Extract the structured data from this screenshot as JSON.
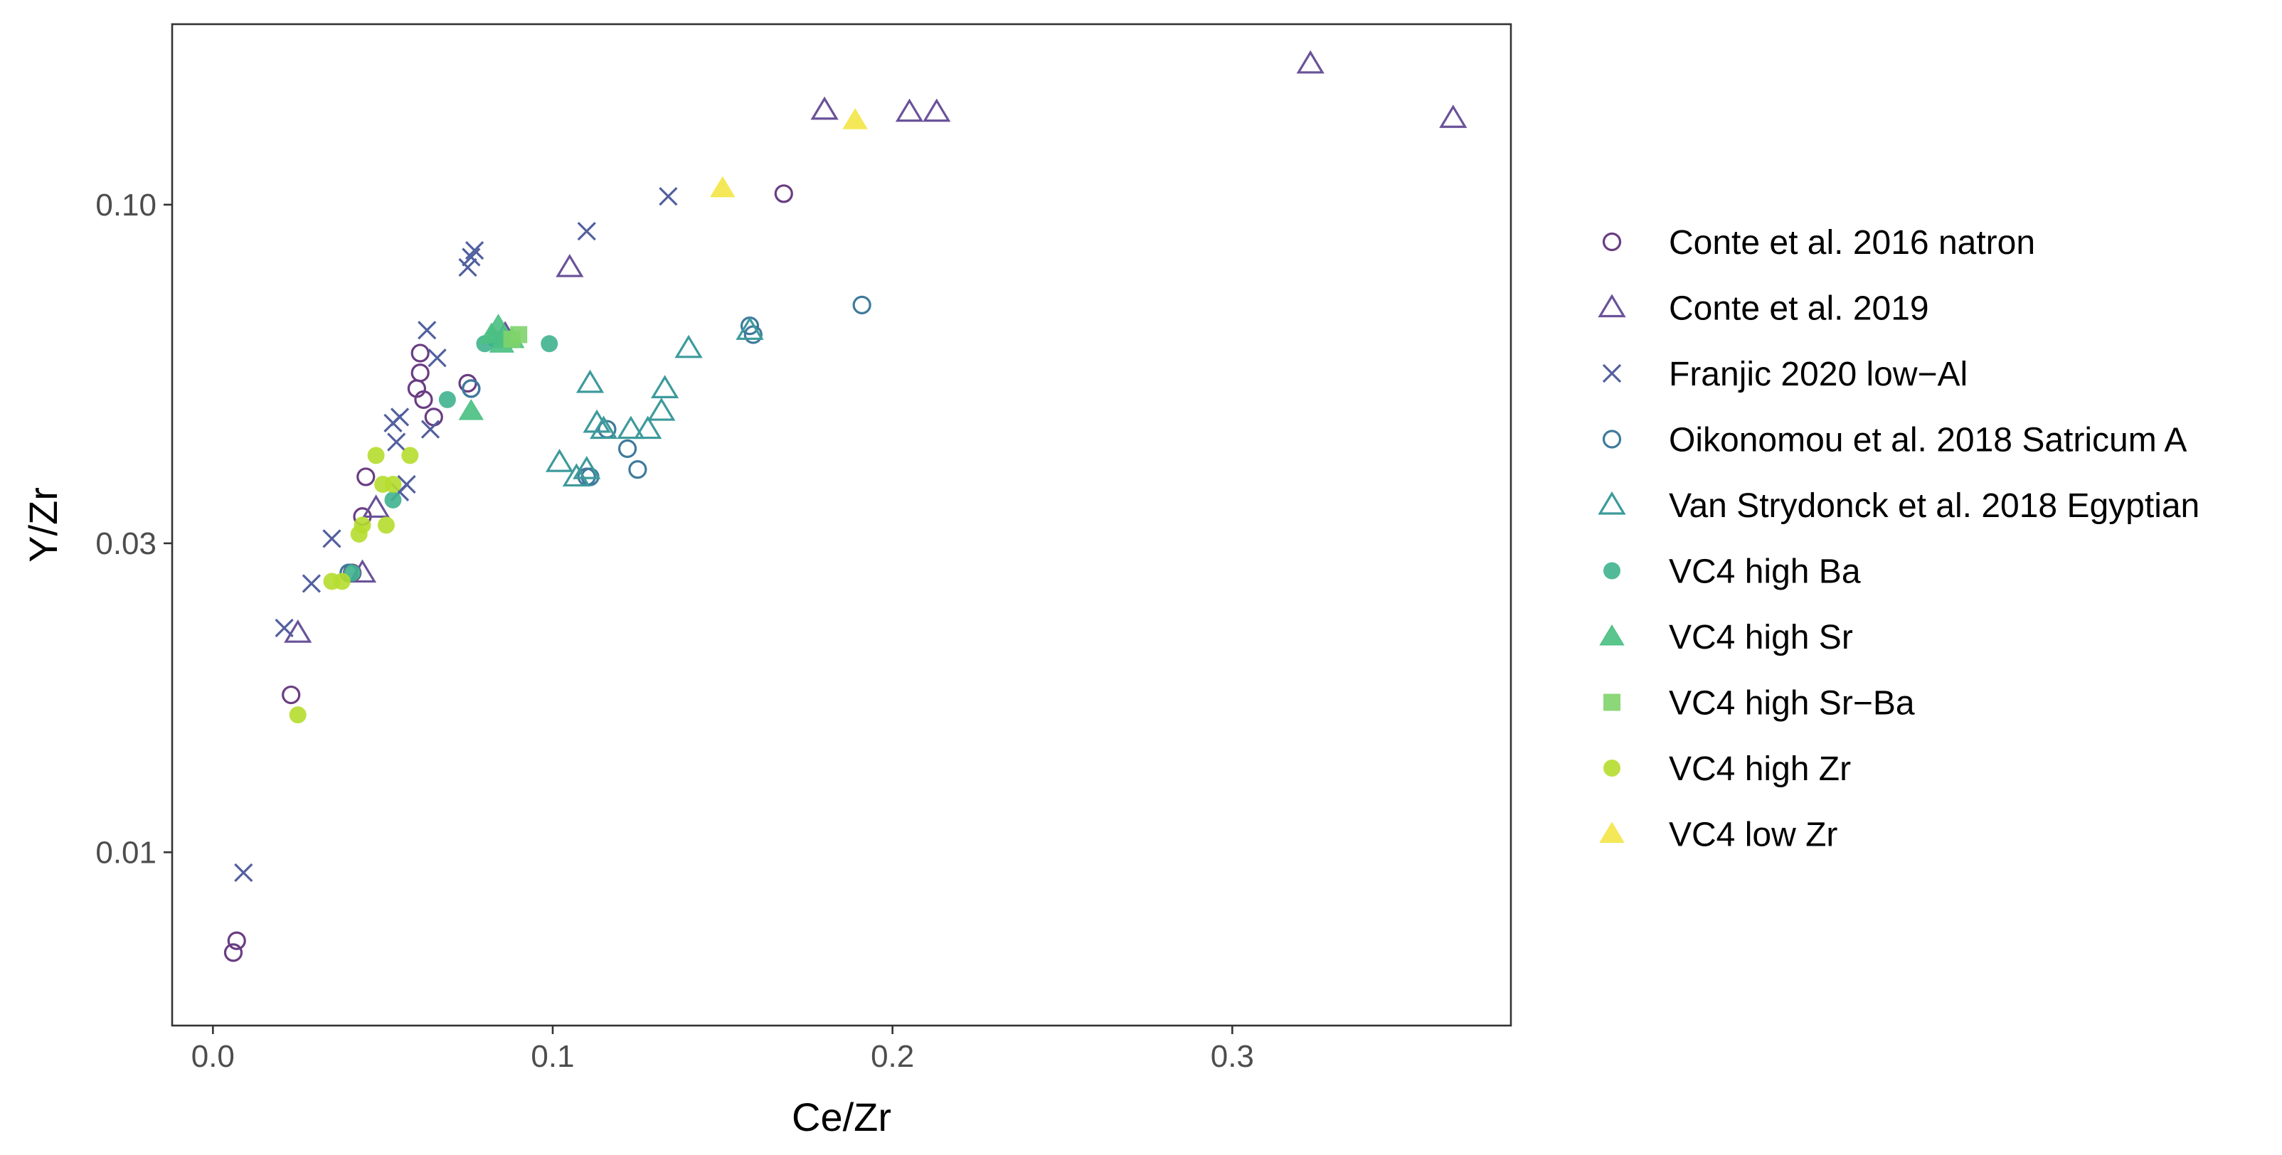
{
  "chart_data": {
    "type": "scatter",
    "title": "",
    "xlabel": "Ce/Zr",
    "ylabel": "Y/Zr",
    "xlim": [
      -0.012,
      0.382
    ],
    "ylim": [
      0.0054,
      0.19
    ],
    "yscale": "log",
    "x_ticks": [
      0.0,
      0.1,
      0.2,
      0.3
    ],
    "x_tick_labels": [
      "0.0",
      "0.1",
      "0.2",
      "0.3"
    ],
    "y_ticks": [
      0.01,
      0.03,
      0.1
    ],
    "y_tick_labels": [
      "0.01",
      "0.03",
      "0.10"
    ],
    "grid": false,
    "legend_position": "right",
    "series": [
      {
        "name": "Conte et al. 2016 natron",
        "marker": "open-circle",
        "color": "#6a3d82",
        "points": [
          [
            0.168,
            0.104
          ],
          [
            0.061,
            0.059
          ],
          [
            0.061,
            0.055
          ],
          [
            0.06,
            0.052
          ],
          [
            0.062,
            0.05
          ],
          [
            0.065,
            0.047
          ],
          [
            0.076,
            0.052
          ],
          [
            0.075,
            0.053
          ],
          [
            0.045,
            0.038
          ],
          [
            0.044,
            0.033
          ],
          [
            0.041,
            0.027
          ],
          [
            0.04,
            0.027
          ],
          [
            0.023,
            0.0175
          ],
          [
            0.007,
            0.0073
          ],
          [
            0.006,
            0.007
          ]
        ]
      },
      {
        "name": "Conte et al. 2019",
        "marker": "open-triangle",
        "color": "#6a5299",
        "points": [
          [
            0.323,
            0.165
          ],
          [
            0.365,
            0.136
          ],
          [
            0.18,
            0.14
          ],
          [
            0.205,
            0.139
          ],
          [
            0.213,
            0.139
          ],
          [
            0.105,
            0.08
          ],
          [
            0.086,
            0.063
          ],
          [
            0.048,
            0.034
          ],
          [
            0.044,
            0.027
          ],
          [
            0.025,
            0.0218
          ]
        ]
      },
      {
        "name": "Franjic 2020 low−Al",
        "marker": "cross",
        "color": "#52609f",
        "points": [
          [
            0.134,
            0.103
          ],
          [
            0.11,
            0.091
          ],
          [
            0.077,
            0.085
          ],
          [
            0.076,
            0.083
          ],
          [
            0.075,
            0.08
          ],
          [
            0.063,
            0.064
          ],
          [
            0.066,
            0.058
          ],
          [
            0.055,
            0.047
          ],
          [
            0.053,
            0.046
          ],
          [
            0.054,
            0.043
          ],
          [
            0.064,
            0.045
          ],
          [
            0.057,
            0.037
          ],
          [
            0.055,
            0.036
          ],
          [
            0.035,
            0.0305
          ],
          [
            0.029,
            0.026
          ],
          [
            0.021,
            0.0222
          ],
          [
            0.009,
            0.0093
          ]
        ]
      },
      {
        "name": "Oikonomou et al. 2018 Satricum A",
        "marker": "open-circle",
        "color": "#3e7a9c",
        "points": [
          [
            0.191,
            0.07
          ],
          [
            0.158,
            0.065
          ],
          [
            0.159,
            0.063
          ],
          [
            0.116,
            0.045
          ],
          [
            0.122,
            0.042
          ],
          [
            0.125,
            0.039
          ],
          [
            0.111,
            0.038
          ],
          [
            0.11,
            0.038
          ],
          [
            0.076,
            0.052
          ],
          [
            0.04,
            0.027
          ]
        ]
      },
      {
        "name": "Van Strydonck et al. 2018 Egyptian",
        "marker": "open-triangle",
        "color": "#3d9a9c",
        "points": [
          [
            0.14,
            0.06
          ],
          [
            0.158,
            0.064
          ],
          [
            0.111,
            0.053
          ],
          [
            0.133,
            0.052
          ],
          [
            0.132,
            0.048
          ],
          [
            0.113,
            0.046
          ],
          [
            0.115,
            0.045
          ],
          [
            0.123,
            0.045
          ],
          [
            0.128,
            0.045
          ],
          [
            0.102,
            0.04
          ],
          [
            0.107,
            0.038
          ],
          [
            0.11,
            0.039
          ]
        ]
      },
      {
        "name": "VC4 high Ba",
        "marker": "filled-circle",
        "color": "#3fb28e",
        "points": [
          [
            0.099,
            0.061
          ],
          [
            0.08,
            0.061
          ],
          [
            0.083,
            0.062
          ],
          [
            0.087,
            0.062
          ],
          [
            0.069,
            0.05
          ],
          [
            0.053,
            0.035
          ],
          [
            0.041,
            0.027
          ]
        ]
      },
      {
        "name": "VC4 high Sr",
        "marker": "filled-triangle",
        "color": "#4cc083",
        "points": [
          [
            0.084,
            0.065
          ],
          [
            0.082,
            0.063
          ],
          [
            0.086,
            0.062
          ],
          [
            0.088,
            0.062
          ],
          [
            0.085,
            0.061
          ],
          [
            0.076,
            0.048
          ]
        ]
      },
      {
        "name": "VC4 high Sr−Ba",
        "marker": "filled-square",
        "color": "#7fd36a",
        "points": [
          [
            0.09,
            0.063
          ],
          [
            0.088,
            0.062
          ]
        ]
      },
      {
        "name": "VC4 high Zr",
        "marker": "filled-circle",
        "color": "#b5dd2e",
        "points": [
          [
            0.048,
            0.041
          ],
          [
            0.058,
            0.041
          ],
          [
            0.05,
            0.037
          ],
          [
            0.053,
            0.037
          ],
          [
            0.051,
            0.032
          ],
          [
            0.044,
            0.032
          ],
          [
            0.043,
            0.031
          ],
          [
            0.035,
            0.0262
          ],
          [
            0.038,
            0.0262
          ],
          [
            0.025,
            0.0163
          ]
        ]
      },
      {
        "name": "VC4 low Zr",
        "marker": "filled-triangle",
        "color": "#f4e64a",
        "points": [
          [
            0.15,
            0.106
          ],
          [
            0.189,
            0.135
          ]
        ]
      }
    ]
  }
}
